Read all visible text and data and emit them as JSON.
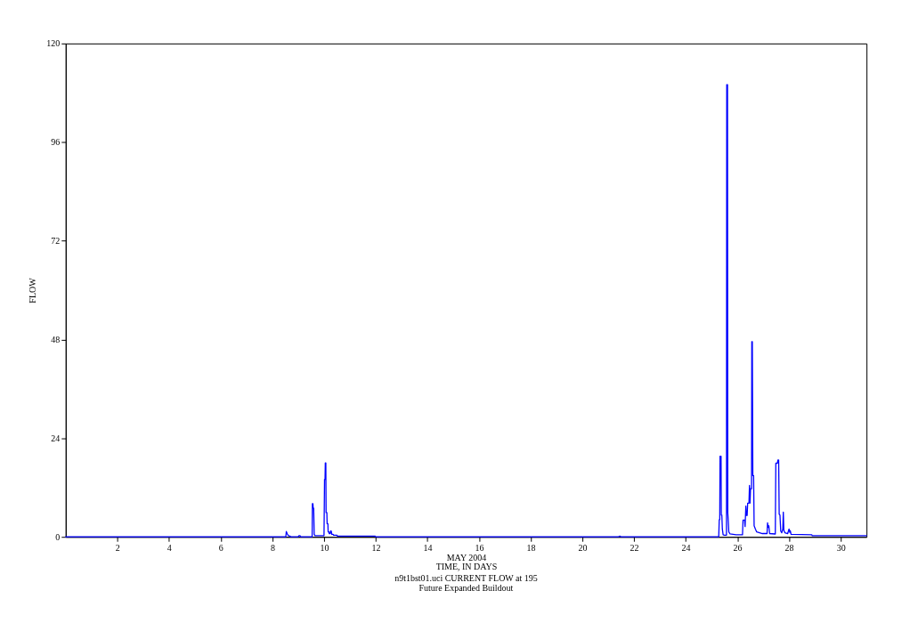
{
  "chart_data": {
    "type": "line",
    "title": "n9t1bst01.uci CURRENT FLOW at 195",
    "subtitle": "Future Expanded Buildout",
    "xlabel": "MAY 2004\nTIME, IN DAYS",
    "ylabel": "FLOW",
    "xlim": [
      0,
      31
    ],
    "xticks": [
      2,
      4,
      6,
      8,
      10,
      12,
      14,
      16,
      18,
      20,
      22,
      24,
      26,
      28,
      30
    ],
    "ylim": [
      0,
      120
    ],
    "yticks": [
      0,
      24,
      48,
      72,
      96,
      120
    ],
    "x": [
      0,
      8.52,
      8.54,
      8.58,
      8.62,
      8.68,
      8.71,
      9.0,
      9.03,
      9.07,
      9.1,
      9.54,
      9.55,
      9.57,
      9.58,
      9.6,
      9.62,
      9.65,
      10.0,
      10.02,
      10.04,
      10.05,
      10.07,
      10.08,
      10.11,
      10.12,
      10.15,
      10.16,
      10.19,
      10.2,
      10.24,
      10.25,
      10.28,
      10.3,
      10.35,
      10.37,
      10.5,
      10.52,
      11.98,
      12.0,
      21.4,
      21.45,
      21.5,
      25.28,
      25.3,
      25.32,
      25.33,
      25.37,
      25.38,
      25.4,
      25.42,
      25.45,
      25.5,
      25.58,
      25.59,
      25.62,
      25.63,
      25.65,
      25.67,
      25.72,
      25.95,
      26.2,
      26.22,
      26.28,
      26.3,
      26.33,
      26.35,
      26.38,
      26.4,
      26.45,
      26.47,
      26.49,
      26.51,
      26.55,
      26.56,
      26.58,
      26.6,
      26.63,
      26.65,
      26.7,
      26.75,
      26.97,
      27.15,
      27.17,
      27.19,
      27.22,
      27.25,
      27.47,
      27.49,
      27.55,
      27.57,
      27.6,
      27.62,
      27.65,
      27.68,
      27.72,
      27.76,
      27.78,
      27.8,
      27.84,
      27.95,
      28.0,
      28.03,
      28.05,
      28.08,
      28.88,
      28.9,
      31
    ],
    "series": [
      {
        "color": "#0000ff",
        "values": [
          0,
          0,
          1.3,
          0.7,
          0.3,
          0.2,
          0,
          0,
          0.3,
          0.3,
          0,
          0,
          8.1,
          8.1,
          7.0,
          7.0,
          0.6,
          0.3,
          0.3,
          14.0,
          14.0,
          18.0,
          18.0,
          5.9,
          5.9,
          3.2,
          3.2,
          1.2,
          1.2,
          0.8,
          0.8,
          1.4,
          1.4,
          0.6,
          0.6,
          0.4,
          0.4,
          0.2,
          0.2,
          0,
          0,
          0.2,
          0,
          0,
          4.2,
          4.2,
          19.6,
          19.6,
          5.3,
          5.3,
          1.9,
          0.5,
          0.4,
          0.4,
          110,
          110,
          5.9,
          3.7,
          1.2,
          0.7,
          0.5,
          0.5,
          4.1,
          4.1,
          2.5,
          7.5,
          5.2,
          5.2,
          8.2,
          8.2,
          12.5,
          8.2,
          11.7,
          11.7,
          47.5,
          47.5,
          14.9,
          14.9,
          2.7,
          1.9,
          1.2,
          0.8,
          0.8,
          3.4,
          2.3,
          2.7,
          0.8,
          0.7,
          17.9,
          17.9,
          18.7,
          18.7,
          5.5,
          5.3,
          1.4,
          1.0,
          1.9,
          6.0,
          1.6,
          1.0,
          0.8,
          1.9,
          1.1,
          1.5,
          0.6,
          0.5,
          0.3,
          0.3
        ]
      }
    ]
  }
}
